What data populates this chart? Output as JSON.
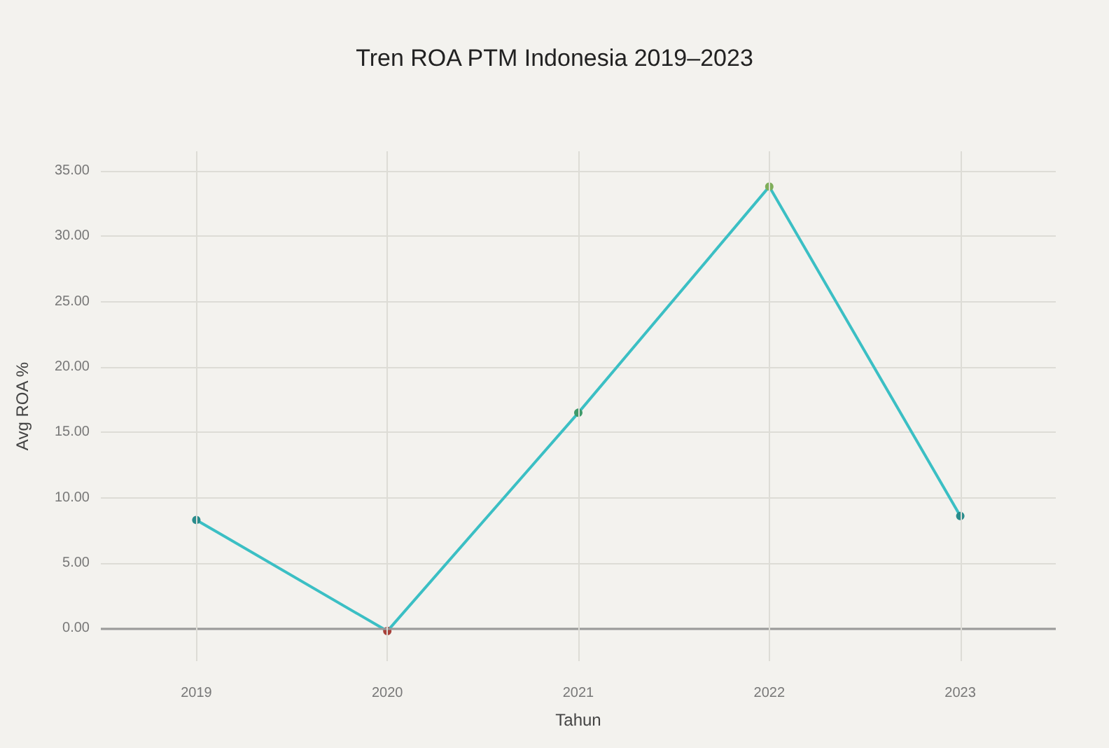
{
  "chart_data": {
    "type": "line",
    "title": "Tren ROA PTM Indonesia 2019–2023",
    "xlabel": "Tahun",
    "ylabel": "Avg ROA %",
    "categories": [
      "2019",
      "2020",
      "2021",
      "2022",
      "2023"
    ],
    "series": [
      {
        "color": "#3bbfc4",
        "colors": [
          "#2a8c8c",
          "#a8413a",
          "#3f9a6a",
          "#7fae5a",
          "#2a8c8c"
        ],
        "values": [
          8.3,
          -0.2,
          16.5,
          33.8,
          8.6
        ]
      }
    ],
    "ylim": [
      -2.5,
      36.5
    ],
    "yticks": [
      {
        "value": 0,
        "label": "0.00"
      },
      {
        "value": 5,
        "label": "5.00"
      },
      {
        "value": 10,
        "label": "10.00"
      },
      {
        "value": 15,
        "label": "15.00"
      },
      {
        "value": 20,
        "label": "20.00"
      },
      {
        "value": 25,
        "label": "25.00"
      },
      {
        "value": 30,
        "label": "30.00"
      },
      {
        "value": 35,
        "label": "35.00"
      }
    ],
    "ref_lines": [
      {
        "axis": "y",
        "value": 0,
        "color": "#9a9a9a"
      }
    ],
    "grid": true,
    "marker": "circle",
    "line_style": "solid"
  }
}
